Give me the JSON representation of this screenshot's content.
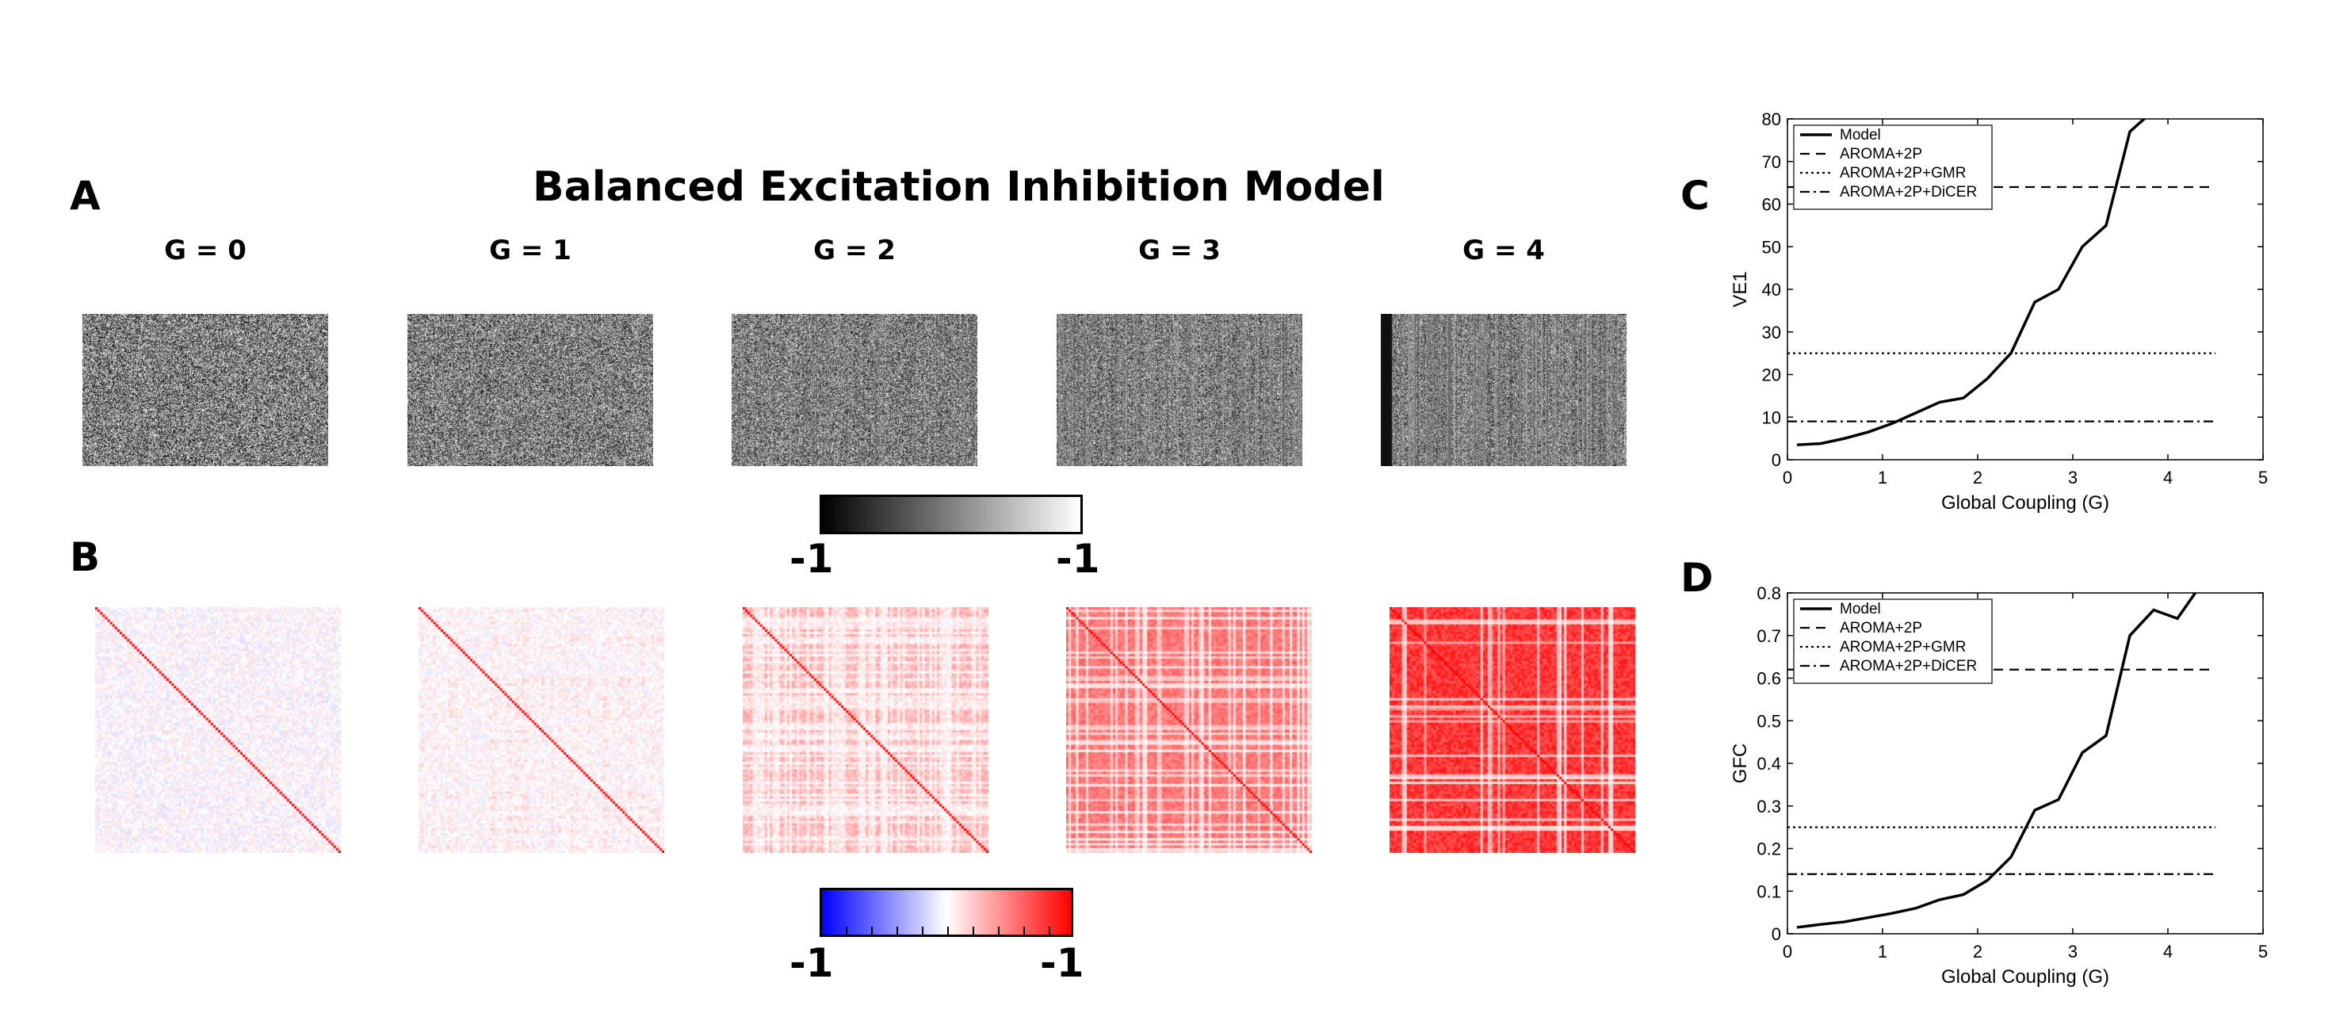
{
  "figure": {
    "title": "Balanced Excitation Inhibition Model",
    "panel_labels": {
      "a": "A",
      "b": "B",
      "c": "C",
      "d": "D"
    },
    "g_labels": [
      "G = 0",
      "G = 1",
      "G = 2",
      "G = 3",
      "G = 4"
    ],
    "colorbar_gray": {
      "min_label": "-1",
      "max_label": "-1"
    },
    "colorbar_rwb": {
      "min_label": "-1",
      "max_label": "-1"
    }
  },
  "colors": {
    "line": "#000000",
    "red": "#ff0000",
    "blue": "#0000ff"
  },
  "chart_data": [
    {
      "type": "line",
      "panel": "C",
      "xlabel": "Global Coupling (G)",
      "ylabel": "VE1",
      "xlim": [
        0,
        5
      ],
      "ylim": [
        0,
        80
      ],
      "xticks": [
        "0",
        "1",
        "2",
        "3",
        "4",
        "5"
      ],
      "yticks": [
        "0",
        "10",
        "20",
        "30",
        "40",
        "50",
        "60",
        "70",
        "80"
      ],
      "legend_position": "top-left",
      "series": [
        {
          "name": "Model",
          "style": "solid",
          "x": [
            0.1,
            0.35,
            0.6,
            0.85,
            1.1,
            1.35,
            1.6,
            1.85,
            2.1,
            2.35,
            2.6,
            2.85,
            3.1,
            3.35,
            3.6,
            3.85,
            4.1,
            4.35
          ],
          "y": [
            3.5,
            3.8,
            5,
            6.5,
            8.5,
            11,
            13.5,
            14.5,
            19,
            25,
            37,
            40,
            50,
            55,
            77,
            82,
            81,
            86
          ]
        },
        {
          "name": "AROMA+2P",
          "style": "dashed",
          "x": [
            0,
            4.5
          ],
          "y": [
            64,
            64
          ]
        },
        {
          "name": "AROMA+2P+GMR",
          "style": "dotted",
          "x": [
            0,
            4.5
          ],
          "y": [
            25,
            25
          ]
        },
        {
          "name": "AROMA+2P+DiCER",
          "style": "dashdot",
          "x": [
            0,
            4.5
          ],
          "y": [
            9,
            9
          ]
        }
      ]
    },
    {
      "type": "line",
      "panel": "D",
      "xlabel": "Global Coupling (G)",
      "ylabel": "GFC",
      "xlim": [
        0,
        5
      ],
      "ylim": [
        0,
        0.8
      ],
      "xticks": [
        "0",
        "1",
        "2",
        "3",
        "4",
        "5"
      ],
      "yticks": [
        "0",
        "0.1",
        "0.2",
        "0.3",
        "0.4",
        "0.5",
        "0.6",
        "0.7",
        "0.8"
      ],
      "legend_position": "top-left",
      "series": [
        {
          "name": "Model",
          "style": "solid",
          "x": [
            0.1,
            0.35,
            0.6,
            0.85,
            1.1,
            1.35,
            1.6,
            1.85,
            2.1,
            2.35,
            2.6,
            2.85,
            3.1,
            3.35,
            3.6,
            3.85,
            4.1,
            4.35
          ],
          "y": [
            0.015,
            0.022,
            0.028,
            0.038,
            0.048,
            0.06,
            0.08,
            0.092,
            0.125,
            0.18,
            0.29,
            0.315,
            0.425,
            0.465,
            0.7,
            0.76,
            0.74,
            0.82
          ]
        },
        {
          "name": "AROMA+2P",
          "style": "dashed",
          "x": [
            0,
            4.5
          ],
          "y": [
            0.62,
            0.62
          ]
        },
        {
          "name": "AROMA+2P+GMR",
          "style": "dotted",
          "x": [
            0,
            4.5
          ],
          "y": [
            0.25,
            0.25
          ]
        },
        {
          "name": "AROMA+2P+DiCER",
          "style": "dashdot",
          "x": [
            0,
            4.5
          ],
          "y": [
            0.14,
            0.14
          ]
        }
      ]
    }
  ]
}
